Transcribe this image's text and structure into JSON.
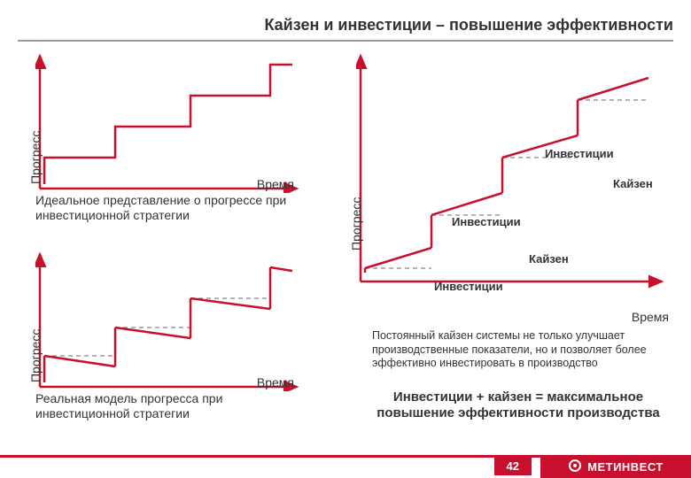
{
  "title": "Кайзен и инвестиции – повышение эффективности",
  "colors": {
    "accent": "#c8102e",
    "axis": "#c8102e",
    "dash": "#888888",
    "text": "#333333",
    "footer_bg": "#c8102e",
    "white": "#ffffff"
  },
  "chart1": {
    "type": "step-line",
    "y_label": "Прогресс",
    "x_label": "Время",
    "caption": "Идеальное представление о прогрессе при инвестиционной стратегии",
    "line_color": "#c8102e",
    "line_width": 2.5,
    "axis_color": "#c8102e",
    "axis_width": 2.5,
    "points": [
      [
        10,
        150
      ],
      [
        10,
        120
      ],
      [
        90,
        120
      ],
      [
        90,
        85
      ],
      [
        175,
        85
      ],
      [
        175,
        50
      ],
      [
        265,
        50
      ],
      [
        265,
        15
      ],
      [
        290,
        15
      ]
    ]
  },
  "chart2": {
    "type": "step-line-with-decay",
    "y_label": "Прогресс",
    "x_label": "Время",
    "caption": "Реальная модель прогресса при инвестиционной стратегии",
    "line_color": "#c8102e",
    "line_width": 2.5,
    "dash_color": "#888888",
    "axis_color": "#c8102e",
    "axis_width": 2.5,
    "solid_segments": [
      [
        [
          10,
          150
        ],
        [
          10,
          120
        ]
      ],
      [
        [
          10,
          120
        ],
        [
          90,
          132
        ]
      ],
      [
        [
          90,
          132
        ],
        [
          90,
          88
        ]
      ],
      [
        [
          90,
          88
        ],
        [
          175,
          100
        ]
      ],
      [
        [
          175,
          100
        ],
        [
          175,
          55
        ]
      ],
      [
        [
          175,
          55
        ],
        [
          265,
          67
        ]
      ],
      [
        [
          265,
          67
        ],
        [
          265,
          20
        ]
      ],
      [
        [
          265,
          20
        ],
        [
          290,
          24
        ]
      ]
    ],
    "dash_segments": [
      [
        [
          10,
          120
        ],
        [
          90,
          120
        ]
      ],
      [
        [
          90,
          88
        ],
        [
          175,
          88
        ]
      ],
      [
        [
          175,
          55
        ],
        [
          265,
          55
        ]
      ]
    ]
  },
  "chart3": {
    "type": "step-with-kaizen",
    "y_label": "Прогресс",
    "x_label": "Время",
    "line_color": "#c8102e",
    "line_width": 2.5,
    "dash_color": "#888888",
    "axis_color": "#c8102e",
    "axis_width": 2.5,
    "solid_segments": [
      [
        [
          10,
          250
        ],
        [
          10,
          245
        ]
      ],
      [
        [
          10,
          245
        ],
        [
          85,
          222
        ]
      ],
      [
        [
          85,
          222
        ],
        [
          85,
          185
        ]
      ],
      [
        [
          85,
          185
        ],
        [
          165,
          160
        ]
      ],
      [
        [
          165,
          160
        ],
        [
          165,
          120
        ]
      ],
      [
        [
          165,
          120
        ],
        [
          250,
          95
        ]
      ],
      [
        [
          250,
          95
        ],
        [
          250,
          55
        ]
      ],
      [
        [
          250,
          55
        ],
        [
          330,
          30
        ]
      ]
    ],
    "dash_segments": [
      [
        [
          10,
          245
        ],
        [
          85,
          245
        ]
      ],
      [
        [
          85,
          185
        ],
        [
          165,
          185
        ]
      ],
      [
        [
          165,
          120
        ],
        [
          250,
          120
        ]
      ],
      [
        [
          250,
          55
        ],
        [
          330,
          55
        ]
      ]
    ],
    "annotations": {
      "inv1": "Инвестиции",
      "kaizen1": "Кайзен",
      "inv2": "Инвестиции",
      "kaizen2": "Кайзен",
      "inv3": "Инвестиции"
    },
    "body_text": "Постоянный кайзен системы не только улучшает производственные показатели, но и позволяет более эффективно инвестировать в производство",
    "conclusion": "Инвестиции + кайзен  = максимальное повышение эффективности производства"
  },
  "footer": {
    "page_number": "42",
    "brand": "МЕТИНВЕСТ"
  }
}
